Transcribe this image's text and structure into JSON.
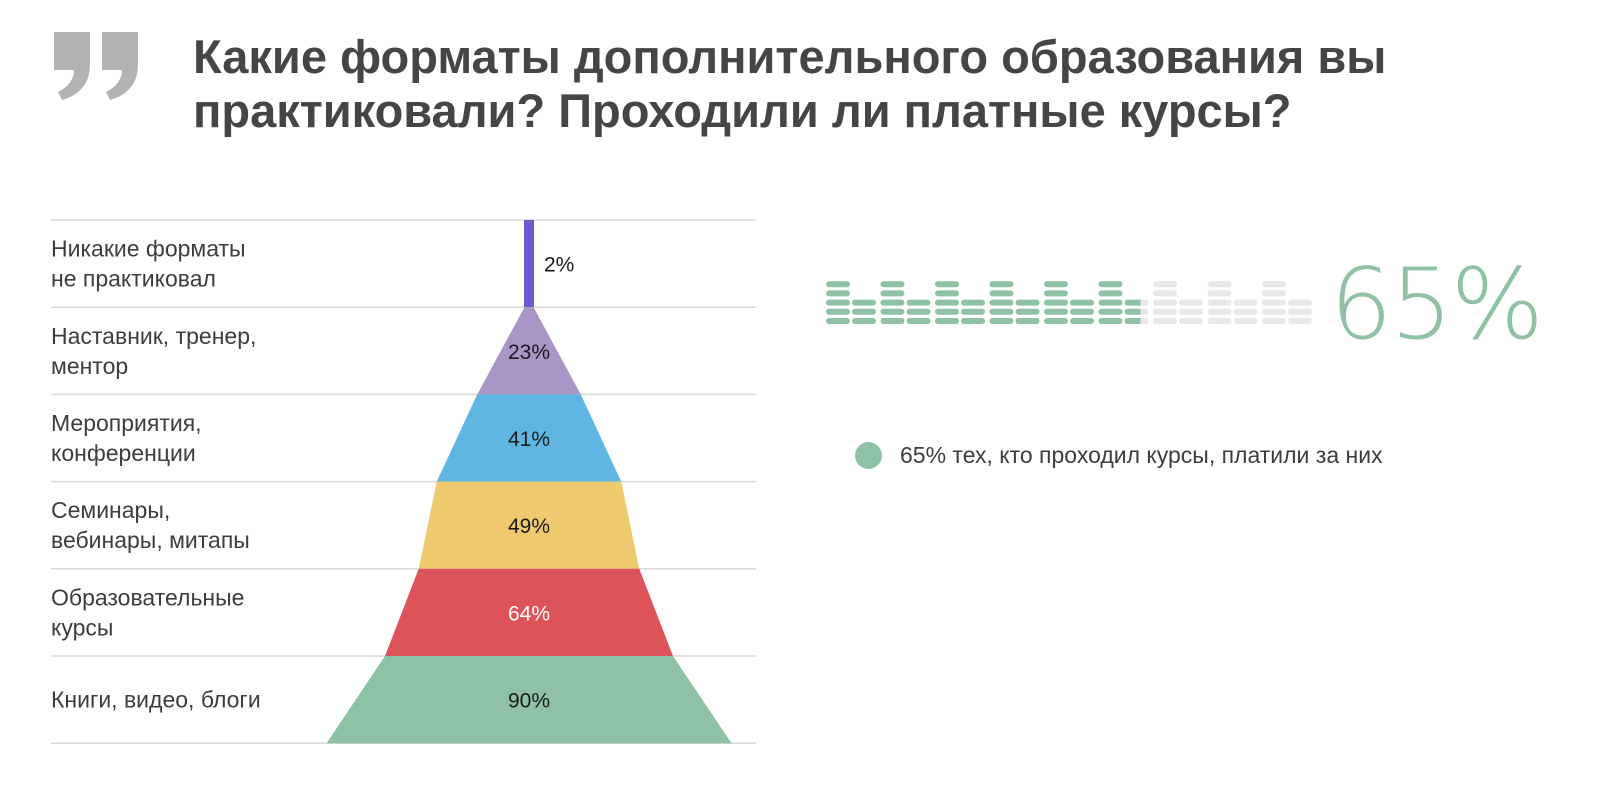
{
  "title": "Какие форматы дополнительного образования вы практиковали? Проходили ли платные курсы?",
  "colors": {
    "text": "#3d3d3d",
    "title": "#454545",
    "quote": "#b3b3b3",
    "rule": "#d9d9d9",
    "coin_active": "#8fc1a5",
    "coin_inactive": "#e8e8e8"
  },
  "chart_data": [
    {
      "type": "bar",
      "categories": [
        "Никакие форматы не практиковал",
        "Наставник, тренер, ментор",
        "Мероприятия, конференции",
        "Семинары, вебинары, митапы",
        "Образовательные курсы",
        "Книги, видео, блоги"
      ],
      "category_lines": [
        [
          "Никакие форматы",
          "не практиковал"
        ],
        [
          "Наставник, тренер,",
          "ментор"
        ],
        [
          "Мероприятия,",
          "конференции"
        ],
        [
          "Семинары,",
          "вебинары, митапы"
        ],
        [
          "Образовательные",
          "курсы"
        ],
        [
          "Книги, видео, блоги"
        ]
      ],
      "values": [
        2,
        23,
        41,
        49,
        64,
        90
      ],
      "value_labels": [
        "2%",
        "23%",
        "41%",
        "49%",
        "64%",
        "90%"
      ],
      "colors": [
        "#6a5bd1",
        "#a995c6",
        "#5fb6e3",
        "#efc96e",
        "#dc545a",
        "#8fc1a5"
      ],
      "label_colors": [
        "#1a1a1a",
        "#1a1a1a",
        "#1a1a1a",
        "#1a1a1a",
        "#ffffff",
        "#1a1a1a"
      ]
    },
    {
      "type": "pie",
      "values": [
        65
      ],
      "value_label": "65%",
      "legend": "65% тех, кто проходил курсы, платили за них",
      "color": "#8fc1a5"
    }
  ]
}
